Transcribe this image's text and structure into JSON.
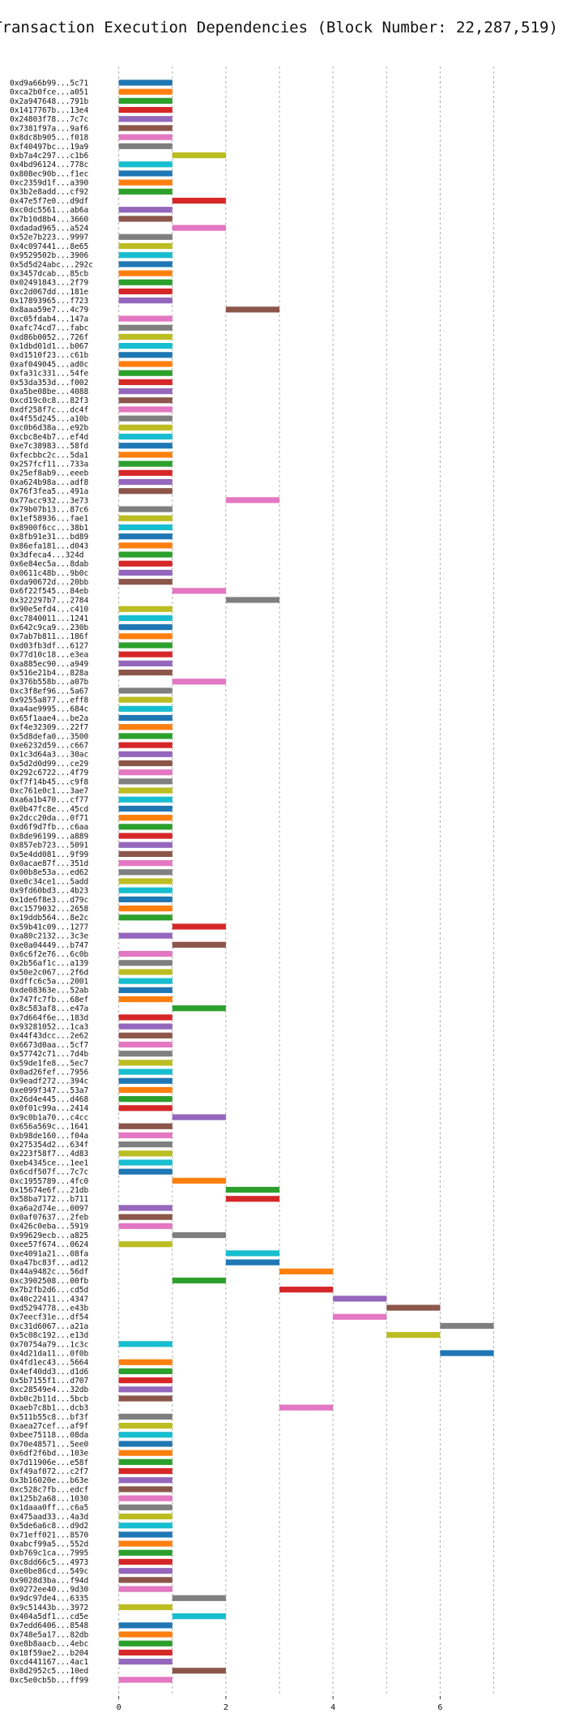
{
  "chart_data": {
    "type": "gantt",
    "title": "Transaction Execution Dependencies (Block Number: 22,287,519)",
    "xlabel": "",
    "ylabel": "",
    "xlim": [
      -0.1,
      7.4
    ],
    "x_ticks": [
      0,
      2,
      4,
      6
    ],
    "grid": "vertical-dashed",
    "palette": [
      "#1f77b4",
      "#ff7f0e",
      "#2ca02c",
      "#d62728",
      "#9467bd",
      "#8c564b",
      "#e377c2",
      "#7f7f7f",
      "#bcbd22",
      "#17becf"
    ],
    "transactions": [
      {
        "hash": "0xd9a66b99...5c71",
        "start": 0,
        "end": 1
      },
      {
        "hash": "0xca2b0fce...a051",
        "start": 0,
        "end": 1
      },
      {
        "hash": "0x2a947648...791b",
        "start": 0,
        "end": 1
      },
      {
        "hash": "0x1417767b...13e4",
        "start": 0,
        "end": 1
      },
      {
        "hash": "0x24803f78...7c7c",
        "start": 0,
        "end": 1
      },
      {
        "hash": "0x7381f97a...9af6",
        "start": 0,
        "end": 1
      },
      {
        "hash": "0x8dc8b905...f018",
        "start": 0,
        "end": 1
      },
      {
        "hash": "0xf40497bc...19a9",
        "start": 0,
        "end": 1
      },
      {
        "hash": "0xb7a4c297...c1b6",
        "start": 1,
        "end": 2
      },
      {
        "hash": "0x4bd96124...778c",
        "start": 0,
        "end": 1
      },
      {
        "hash": "0x808ec90b...f1ec",
        "start": 0,
        "end": 1
      },
      {
        "hash": "0xc2359d1f...a390",
        "start": 0,
        "end": 1
      },
      {
        "hash": "0x3b2e8add...cf92",
        "start": 0,
        "end": 1
      },
      {
        "hash": "0x47e5f7e0...d9df",
        "start": 1,
        "end": 2
      },
      {
        "hash": "0xc0dc5561...ab6a",
        "start": 0,
        "end": 1
      },
      {
        "hash": "0x7b10d8b4...3660",
        "start": 0,
        "end": 1
      },
      {
        "hash": "0xdadad965...a524",
        "start": 1,
        "end": 2
      },
      {
        "hash": "0x52e7b223...9997",
        "start": 0,
        "end": 1
      },
      {
        "hash": "0x4c097441...8e65",
        "start": 0,
        "end": 1
      },
      {
        "hash": "0x9529502b...3906",
        "start": 0,
        "end": 1
      },
      {
        "hash": "0x5d5d24abc...292c",
        "start": 0,
        "end": 1
      },
      {
        "hash": "0x3457dcab...85cb",
        "start": 0,
        "end": 1
      },
      {
        "hash": "0x02491843...2f79",
        "start": 0,
        "end": 1
      },
      {
        "hash": "0xc2d067dd...181e",
        "start": 0,
        "end": 1
      },
      {
        "hash": "0x17893965...f723",
        "start": 0,
        "end": 1
      },
      {
        "hash": "0x8aaa59e7...4c79",
        "start": 2,
        "end": 3
      },
      {
        "hash": "0xc05fdab4...147a",
        "start": 0,
        "end": 1
      },
      {
        "hash": "0xafc74cd7...fabc",
        "start": 0,
        "end": 1
      },
      {
        "hash": "0xd86b0052...726f",
        "start": 0,
        "end": 1
      },
      {
        "hash": "0x1dbd01d1...b067",
        "start": 0,
        "end": 1
      },
      {
        "hash": "0xd1510f23...c61b",
        "start": 0,
        "end": 1
      },
      {
        "hash": "0xaf049045...ad0c",
        "start": 0,
        "end": 1
      },
      {
        "hash": "0xfa31c331...54fe",
        "start": 0,
        "end": 1
      },
      {
        "hash": "0x53da353d...f002",
        "start": 0,
        "end": 1
      },
      {
        "hash": "0xa5be08be...4088",
        "start": 0,
        "end": 1
      },
      {
        "hash": "0xcd19c0c8...82f3",
        "start": 0,
        "end": 1
      },
      {
        "hash": "0xdf258f7c...dc4f",
        "start": 0,
        "end": 1
      },
      {
        "hash": "0x4f55d245...a10b",
        "start": 0,
        "end": 1
      },
      {
        "hash": "0xc0b6d38a...e92b",
        "start": 0,
        "end": 1
      },
      {
        "hash": "0xcbc8e4b7...ef4d",
        "start": 0,
        "end": 1
      },
      {
        "hash": "0xe7c38983...58fd",
        "start": 0,
        "end": 1
      },
      {
        "hash": "0xfecbbc2c...5da1",
        "start": 0,
        "end": 1
      },
      {
        "hash": "0x257fcf11...733a",
        "start": 0,
        "end": 1
      },
      {
        "hash": "0x25ef8ab9...eeeb",
        "start": 0,
        "end": 1
      },
      {
        "hash": "0xa624b98a...adf8",
        "start": 0,
        "end": 1
      },
      {
        "hash": "0x76f3fea5...491a",
        "start": 0,
        "end": 1
      },
      {
        "hash": "0x77acc932...3e73",
        "start": 2,
        "end": 3
      },
      {
        "hash": "0x79b07b13...87c6",
        "start": 0,
        "end": 1
      },
      {
        "hash": "0x1ef58936...fae1",
        "start": 0,
        "end": 1
      },
      {
        "hash": "0x8900f6cc...38b1",
        "start": 0,
        "end": 1
      },
      {
        "hash": "0x8fb91e31...bd89",
        "start": 0,
        "end": 1
      },
      {
        "hash": "0x86efa181...d043",
        "start": 0,
        "end": 1
      },
      {
        "hash": "0x3dfeca4...324d",
        "start": 0,
        "end": 1
      },
      {
        "hash": "0x6e84ec5a...8dab",
        "start": 0,
        "end": 1
      },
      {
        "hash": "0x0611c48b...9b0c",
        "start": 0,
        "end": 1
      },
      {
        "hash": "0xda90672d...20bb",
        "start": 0,
        "end": 1
      },
      {
        "hash": "0x6f22f545...84eb",
        "start": 1,
        "end": 2
      },
      {
        "hash": "0x322297b7...2784",
        "start": 2,
        "end": 3
      },
      {
        "hash": "0x90e5efd4...c410",
        "start": 0,
        "end": 1
      },
      {
        "hash": "0xc7840011...1241",
        "start": 0,
        "end": 1
      },
      {
        "hash": "0x642c9ca9...230b",
        "start": 0,
        "end": 1
      },
      {
        "hash": "0x7ab7b811...186f",
        "start": 0,
        "end": 1
      },
      {
        "hash": "0xd03fb3df...6127",
        "start": 0,
        "end": 1
      },
      {
        "hash": "0x77d10c18...e3ea",
        "start": 0,
        "end": 1
      },
      {
        "hash": "0xa885ec90...a949",
        "start": 0,
        "end": 1
      },
      {
        "hash": "0x516e21b4...828a",
        "start": 0,
        "end": 1
      },
      {
        "hash": "0x376b558b...a07b",
        "start": 1,
        "end": 2
      },
      {
        "hash": "0xc3f8ef96...5a67",
        "start": 0,
        "end": 1
      },
      {
        "hash": "0x9255a877...eff8",
        "start": 0,
        "end": 1
      },
      {
        "hash": "0xa4ae9995...684c",
        "start": 0,
        "end": 1
      },
      {
        "hash": "0x65f1aae4...be2a",
        "start": 0,
        "end": 1
      },
      {
        "hash": "0xf4e32309...22f7",
        "start": 0,
        "end": 1
      },
      {
        "hash": "0x5d8defa0...3500",
        "start": 0,
        "end": 1
      },
      {
        "hash": "0xe6232d59...c667",
        "start": 0,
        "end": 1
      },
      {
        "hash": "0x1c3d64a3...30ac",
        "start": 0,
        "end": 1
      },
      {
        "hash": "0x5d2d0d99...ce29",
        "start": 0,
        "end": 1
      },
      {
        "hash": "0x292c6722...4f79",
        "start": 0,
        "end": 1
      },
      {
        "hash": "0xf7f14b45...c9f8",
        "start": 0,
        "end": 1
      },
      {
        "hash": "0xc761e0c1...3ae7",
        "start": 0,
        "end": 1
      },
      {
        "hash": "0xa6a1b470...cf77",
        "start": 0,
        "end": 1
      },
      {
        "hash": "0x0b47fc8e...45cd",
        "start": 0,
        "end": 1
      },
      {
        "hash": "0x2dcc20da...0f71",
        "start": 0,
        "end": 1
      },
      {
        "hash": "0xd6f9d7fb...c6aa",
        "start": 0,
        "end": 1
      },
      {
        "hash": "0x8de96199...a889",
        "start": 0,
        "end": 1
      },
      {
        "hash": "0x857eb723...5091",
        "start": 0,
        "end": 1
      },
      {
        "hash": "0x5e4dd081...9f99",
        "start": 0,
        "end": 1
      },
      {
        "hash": "0x0acae87f...351d",
        "start": 0,
        "end": 1
      },
      {
        "hash": "0x00b8e53a...ed62",
        "start": 0,
        "end": 1
      },
      {
        "hash": "0xe0c34ce1...5add",
        "start": 0,
        "end": 1
      },
      {
        "hash": "0x9fd60bd3...4b23",
        "start": 0,
        "end": 1
      },
      {
        "hash": "0x1de6f8e3...d79c",
        "start": 0,
        "end": 1
      },
      {
        "hash": "0xc1579032...2658",
        "start": 0,
        "end": 1
      },
      {
        "hash": "0x19ddb564...8e2c",
        "start": 0,
        "end": 1
      },
      {
        "hash": "0x59b41c09...1277",
        "start": 1,
        "end": 2
      },
      {
        "hash": "0xa80c2132...3c3e",
        "start": 0,
        "end": 1
      },
      {
        "hash": "0xe0a04449...b747",
        "start": 1,
        "end": 2
      },
      {
        "hash": "0x6c6f2e76...6c0b",
        "start": 0,
        "end": 1
      },
      {
        "hash": "0x2b56af1c...a139",
        "start": 0,
        "end": 1
      },
      {
        "hash": "0x50e2c067...2f6d",
        "start": 0,
        "end": 1
      },
      {
        "hash": "0xdffc6c5a...2001",
        "start": 0,
        "end": 1
      },
      {
        "hash": "0xde08363e...52ab",
        "start": 0,
        "end": 1
      },
      {
        "hash": "0x747fc7fb...68ef",
        "start": 0,
        "end": 1
      },
      {
        "hash": "0x8c583af8...e47a",
        "start": 1,
        "end": 2
      },
      {
        "hash": "0x7d664f6e...183d",
        "start": 0,
        "end": 1
      },
      {
        "hash": "0x93281052...1ca3",
        "start": 0,
        "end": 1
      },
      {
        "hash": "0x44f43dcc...2e62",
        "start": 0,
        "end": 1
      },
      {
        "hash": "0x6673d0aa...5cf7",
        "start": 0,
        "end": 1
      },
      {
        "hash": "0x57742c71...7d4b",
        "start": 0,
        "end": 1
      },
      {
        "hash": "0x59de1fe8...5ec7",
        "start": 0,
        "end": 1
      },
      {
        "hash": "0x0ad26fef...7956",
        "start": 0,
        "end": 1
      },
      {
        "hash": "0x9eadf272...394c",
        "start": 0,
        "end": 1
      },
      {
        "hash": "0xe099f347...53a7",
        "start": 0,
        "end": 1
      },
      {
        "hash": "0x26d4e445...d468",
        "start": 0,
        "end": 1
      },
      {
        "hash": "0x0f01c99a...2414",
        "start": 0,
        "end": 1
      },
      {
        "hash": "0x9c0b1a70...c4cc",
        "start": 1,
        "end": 2
      },
      {
        "hash": "0x656a569c...1641",
        "start": 0,
        "end": 1
      },
      {
        "hash": "0xb98de160...f04a",
        "start": 0,
        "end": 1
      },
      {
        "hash": "0x275354d2...634f",
        "start": 0,
        "end": 1
      },
      {
        "hash": "0x223f58f7...4d83",
        "start": 0,
        "end": 1
      },
      {
        "hash": "0xeb4345ce...1ee1",
        "start": 0,
        "end": 1
      },
      {
        "hash": "0x6cdf507f...7c7c",
        "start": 0,
        "end": 1
      },
      {
        "hash": "0xc1955789...4fc0",
        "start": 1,
        "end": 2
      },
      {
        "hash": "0x15674e6f...21db",
        "start": 2,
        "end": 3
      },
      {
        "hash": "0x58ba7172...b711",
        "start": 2,
        "end": 3
      },
      {
        "hash": "0xa6a2d74e...0097",
        "start": 0,
        "end": 1
      },
      {
        "hash": "0x0af07637...2feb",
        "start": 0,
        "end": 1
      },
      {
        "hash": "0x426c0eba...5919",
        "start": 0,
        "end": 1
      },
      {
        "hash": "0x99629ecb...a825",
        "start": 1,
        "end": 2
      },
      {
        "hash": "0xee57f674...0624",
        "start": 0,
        "end": 1
      },
      {
        "hash": "0xe4091a21...08fa",
        "start": 2,
        "end": 3
      },
      {
        "hash": "0xa47bc83f...ad12",
        "start": 2,
        "end": 3
      },
      {
        "hash": "0x44a9482c...56df",
        "start": 3,
        "end": 4
      },
      {
        "hash": "0xc3902508...00fb",
        "start": 1,
        "end": 2
      },
      {
        "hash": "0x7b2fb2d6...cd5d",
        "start": 3,
        "end": 4
      },
      {
        "hash": "0x40c22411...4347",
        "start": 4,
        "end": 5
      },
      {
        "hash": "0xd5294778...e43b",
        "start": 5,
        "end": 6
      },
      {
        "hash": "0x7eecf31e...df54",
        "start": 4,
        "end": 5
      },
      {
        "hash": "0xc31d6067...a21a",
        "start": 6,
        "end": 7
      },
      {
        "hash": "0x5c08c192...e13d",
        "start": 5,
        "end": 6
      },
      {
        "hash": "0x70754a79...1c3c",
        "start": 0,
        "end": 1
      },
      {
        "hash": "0x4d21da11...0f0b",
        "start": 6,
        "end": 7
      },
      {
        "hash": "0x4fd1ec43...5664",
        "start": 0,
        "end": 1
      },
      {
        "hash": "0x4ef40dd3...d1d6",
        "start": 0,
        "end": 1
      },
      {
        "hash": "0x5b7155f1...d707",
        "start": 0,
        "end": 1
      },
      {
        "hash": "0xc28549e4...32db",
        "start": 0,
        "end": 1
      },
      {
        "hash": "0xb0c2b11d...5bcb",
        "start": 0,
        "end": 1
      },
      {
        "hash": "0xaeb7c8b1...dcb3",
        "start": 3,
        "end": 4
      },
      {
        "hash": "0x511b55c8...bf3f",
        "start": 0,
        "end": 1
      },
      {
        "hash": "0xaea27cef...af9f",
        "start": 0,
        "end": 1
      },
      {
        "hash": "0xbee75118...08da",
        "start": 0,
        "end": 1
      },
      {
        "hash": "0x70e48571...5ee0",
        "start": 0,
        "end": 1
      },
      {
        "hash": "0x6df2f6bd...103e",
        "start": 0,
        "end": 1
      },
      {
        "hash": "0x7d11906e...e58f",
        "start": 0,
        "end": 1
      },
      {
        "hash": "0xf49af072...c2f7",
        "start": 0,
        "end": 1
      },
      {
        "hash": "0x3b16020e...b63e",
        "start": 0,
        "end": 1
      },
      {
        "hash": "0xc528c7fb...edcf",
        "start": 0,
        "end": 1
      },
      {
        "hash": "0x125b2a68...1030",
        "start": 0,
        "end": 1
      },
      {
        "hash": "0x1daaa0ff...c6a5",
        "start": 0,
        "end": 1
      },
      {
        "hash": "0x475aad33...4a3d",
        "start": 0,
        "end": 1
      },
      {
        "hash": "0x5de6a6c8...d9d2",
        "start": 0,
        "end": 1
      },
      {
        "hash": "0x71eff021...8570",
        "start": 0,
        "end": 1
      },
      {
        "hash": "0xabcf99a5...552d",
        "start": 0,
        "end": 1
      },
      {
        "hash": "0xb769c1ca...7995",
        "start": 0,
        "end": 1
      },
      {
        "hash": "0xc8dd66c5...4973",
        "start": 0,
        "end": 1
      },
      {
        "hash": "0xe0be86cd...549c",
        "start": 0,
        "end": 1
      },
      {
        "hash": "0x9028d3ba...f94d",
        "start": 0,
        "end": 1
      },
      {
        "hash": "0x0272ee40...9d30",
        "start": 0,
        "end": 1
      },
      {
        "hash": "0x9dc97de4...6335",
        "start": 1,
        "end": 2
      },
      {
        "hash": "0x9c51443b...3972",
        "start": 0,
        "end": 1
      },
      {
        "hash": "0x404a5df1...cd5e",
        "start": 1,
        "end": 2
      },
      {
        "hash": "0x7edd6406...8548",
        "start": 0,
        "end": 1
      },
      {
        "hash": "0x748e5a17...82db",
        "start": 0,
        "end": 1
      },
      {
        "hash": "0xe8b8aacb...4ebc",
        "start": 0,
        "end": 1
      },
      {
        "hash": "0x18f59ae2...b204",
        "start": 0,
        "end": 1
      },
      {
        "hash": "0xcd441167...4ac1",
        "start": 0,
        "end": 1
      },
      {
        "hash": "0x8d2952c5...10ed",
        "start": 1,
        "end": 2
      },
      {
        "hash": "0xc5e0cb5b...ff99",
        "start": 0,
        "end": 1
      }
    ]
  }
}
